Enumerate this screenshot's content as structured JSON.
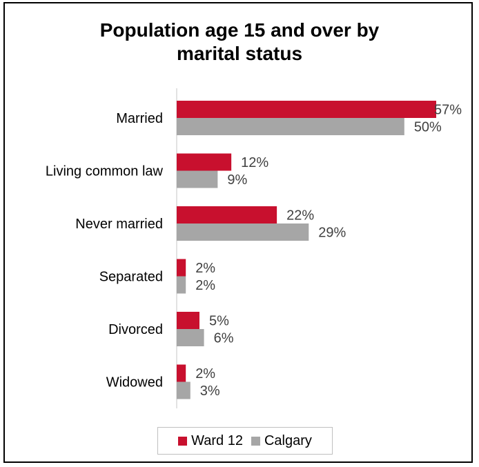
{
  "chart_data": {
    "type": "bar",
    "orientation": "horizontal",
    "title": "Population age 15 and over by marital status",
    "title_lines": [
      "Population age 15 and over by",
      "marital status"
    ],
    "categories": [
      "Married",
      "Living common law",
      "Never married",
      "Separated",
      "Divorced",
      "Widowed"
    ],
    "series": [
      {
        "name": "Ward 12",
        "color": "#c8102e",
        "values": [
          57,
          12,
          22,
          2,
          5,
          2
        ],
        "labels": [
          "57%",
          "12%",
          "22%",
          "2%",
          "5%",
          "2%"
        ]
      },
      {
        "name": "Calgary",
        "color": "#a6a6a6",
        "values": [
          50,
          9,
          29,
          2,
          6,
          3
        ],
        "labels": [
          "50%",
          "9%",
          "29%",
          "2%",
          "6%",
          "3%"
        ]
      }
    ],
    "value_unit": "%",
    "xlim": [
      0,
      57
    ],
    "grid": false,
    "legend_position": "bottom"
  }
}
